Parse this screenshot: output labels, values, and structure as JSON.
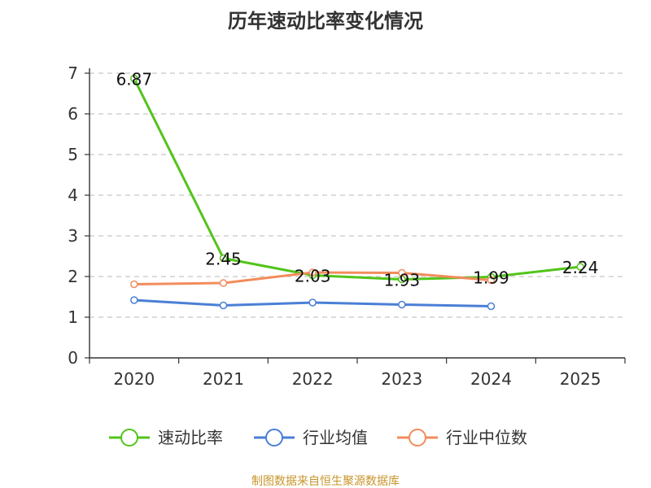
{
  "chart_data": {
    "type": "line",
    "title": "历年速动比率变化情况",
    "categories": [
      "2020",
      "2021",
      "2022",
      "2023",
      "2024",
      "2025"
    ],
    "ylim": [
      0,
      7
    ],
    "yticks": [
      0,
      1,
      2,
      3,
      4,
      5,
      6,
      7
    ],
    "grid": true,
    "legend_position": "bottom",
    "series": [
      {
        "name": "速动比率",
        "color": "#52c41a",
        "values": [
          6.87,
          2.45,
          2.03,
          1.93,
          1.99,
          2.24
        ],
        "labels": [
          "6.87",
          "2.45",
          "2.03",
          "1.93",
          "1.99",
          "2.24"
        ],
        "show_labels": true
      },
      {
        "name": "行业均值",
        "color": "#4a7fd6",
        "values": [
          1.42,
          1.29,
          1.36,
          1.31,
          1.27,
          null
        ],
        "show_labels": false
      },
      {
        "name": "行业中位数",
        "color": "#f28c5c",
        "values": [
          1.81,
          1.84,
          2.1,
          2.09,
          1.91,
          null
        ],
        "show_labels": false
      }
    ]
  },
  "source_text": "制图数据来自恒生聚源数据库"
}
